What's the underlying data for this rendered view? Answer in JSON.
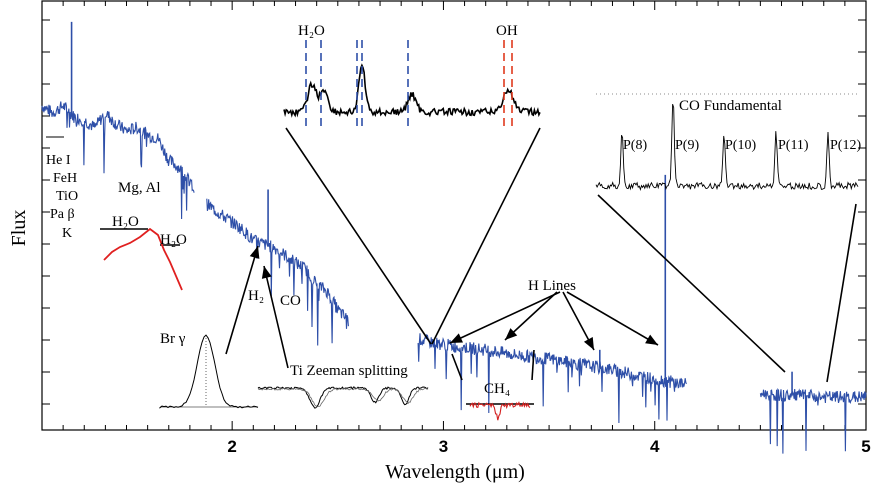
{
  "chart_data": {
    "type": "line",
    "xlabel": "Wavelength (μm)",
    "ylabel": "Flux",
    "xlim": [
      1.1,
      5.0
    ],
    "x_ticks": [
      "2",
      "3",
      "4",
      "5"
    ],
    "x_tick_values": [
      2,
      3,
      4,
      5
    ],
    "series": [
      {
        "segment": "1.15-1.82",
        "color": "#2e4fa8",
        "x": [
          1.1,
          1.15,
          1.2,
          1.25,
          1.3,
          1.35,
          1.4,
          1.45,
          1.5,
          1.55,
          1.6,
          1.65,
          1.7,
          1.75,
          1.8,
          1.82
        ],
        "y": [
          8.9,
          8.7,
          8.9,
          8.6,
          8.5,
          8.3,
          8.7,
          8.4,
          8.2,
          8.3,
          8.1,
          8.0,
          7.4,
          7.2,
          6.8,
          6.6
        ]
      },
      {
        "segment": "1.88-2.55",
        "color": "#2e4fa8",
        "x": [
          1.88,
          1.95,
          2.0,
          2.05,
          2.1,
          2.15,
          2.2,
          2.25,
          2.3,
          2.35,
          2.4,
          2.45,
          2.5,
          2.55
        ],
        "y": [
          6.2,
          5.9,
          5.7,
          5.5,
          5.2,
          5.1,
          5.0,
          4.8,
          4.6,
          4.4,
          4.0,
          3.8,
          3.3,
          3.0
        ]
      },
      {
        "segment": "2.88-4.15",
        "color": "#2e4fa8",
        "x": [
          2.88,
          2.95,
          3.05,
          3.2,
          3.35,
          3.5,
          3.65,
          3.8,
          3.95,
          4.1,
          4.15
        ],
        "y": [
          2.5,
          2.4,
          2.3,
          2.2,
          2.05,
          1.95,
          1.8,
          1.65,
          1.45,
          1.3,
          1.25
        ]
      },
      {
        "segment": "4.50-5.00",
        "color": "#2e4fa8",
        "x": [
          4.5,
          4.6,
          4.7,
          4.8,
          4.9,
          5.0
        ],
        "y": [
          1.0,
          0.95,
          0.95,
          0.9,
          0.9,
          0.9
        ]
      }
    ],
    "emission_lines": [
      {
        "x": 1.24,
        "y": 11.2
      },
      {
        "x": 2.17,
        "y": 6.6
      },
      {
        "x": 3.74,
        "y": 2.2
      },
      {
        "x": 4.05,
        "y": 7.0
      },
      {
        "x": 4.65,
        "y": 1.6
      }
    ],
    "annotations": {
      "h2o_top": "H₂O",
      "oh": "OH",
      "co_fundamental": "CO Fundamental",
      "p_lines": [
        "P(8)",
        "P(9)",
        "P(10)",
        "P(11)",
        "P(12)"
      ],
      "left_labels": [
        "He I",
        "FeH",
        "TiO",
        "Pa β",
        "K"
      ],
      "mg_al": "Mg, Al",
      "h2o_left_1": "H₂O",
      "h2o_left_2": "H₂O",
      "h2": "H₂",
      "co": "CO",
      "h_lines": "H Lines",
      "br_gamma": "Br γ",
      "ti_zeeman": "Ti Zeeman splitting",
      "ch4": "CH₄"
    }
  }
}
